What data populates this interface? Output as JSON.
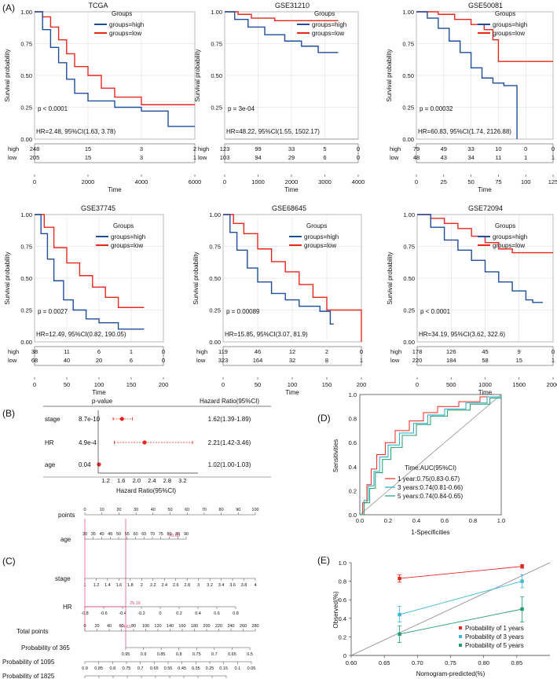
{
  "panel_letters": {
    "A": "(A)",
    "B": "(B)",
    "C": "(C)",
    "D": "(D)",
    "E": "(E)"
  },
  "colors": {
    "high": "#1f4e9c",
    "low": "#e8271f",
    "forest": "#e8271f",
    "nomogram": "#d9437a",
    "grid": "#d9d9d9"
  },
  "km_common": {
    "ylabel": "Survival probability",
    "xlabel": "Time",
    "legend_title": "Groups",
    "legend_high": "groups=high",
    "legend_low": "groups=low",
    "risk_high": "high",
    "risk_low": "low"
  },
  "km_panels": [
    {
      "title": "TCGA",
      "xmax": 6000,
      "ticks": [
        "0",
        "2000",
        "4000",
        "6000"
      ],
      "risk_times": [
        0,
        2000,
        4000,
        6000
      ],
      "risk_high": [
        "248",
        "15",
        "3",
        "2"
      ],
      "risk_low": [
        "205",
        "15",
        "3",
        "1"
      ],
      "pval": "p < 0.0001",
      "hr": "HR=2.48, 95%CI(1.63, 3.78)",
      "yticks": [
        "0.00",
        "0.25",
        "0.50",
        "0.75",
        "1.00"
      ],
      "high_curve": [
        [
          0,
          1
        ],
        [
          300,
          0.86
        ],
        [
          600,
          0.72
        ],
        [
          900,
          0.6
        ],
        [
          1200,
          0.47
        ],
        [
          1500,
          0.36
        ],
        [
          2000,
          0.3
        ],
        [
          3000,
          0.25
        ],
        [
          4000,
          0.22
        ],
        [
          5000,
          0.1
        ],
        [
          6000,
          0.1
        ]
      ],
      "low_curve": [
        [
          0,
          1
        ],
        [
          300,
          0.96
        ],
        [
          600,
          0.88
        ],
        [
          900,
          0.78
        ],
        [
          1200,
          0.67
        ],
        [
          1500,
          0.57
        ],
        [
          2000,
          0.5
        ],
        [
          2500,
          0.4
        ],
        [
          3000,
          0.33
        ],
        [
          4000,
          0.27
        ],
        [
          5000,
          0.27
        ],
        [
          6000,
          0.27
        ]
      ]
    },
    {
      "title": "GSE31210",
      "xmax": 4000,
      "ticks": [
        "0",
        "1000",
        "2000",
        "3000",
        "4000"
      ],
      "risk_times": [
        0,
        1000,
        2000,
        3000,
        4000
      ],
      "risk_high": [
        "123",
        "99",
        "33",
        "5",
        "0"
      ],
      "risk_low": [
        "103",
        "94",
        "29",
        "6",
        "0"
      ],
      "pval": "p = 3e-04",
      "hr": "HR=48.22, 95%CI(1.55, 1502.17)",
      "yticks": [
        "0.25",
        "0.50",
        "0.75",
        "1.00"
      ],
      "high_curve": [
        [
          0,
          1
        ],
        [
          300,
          0.94
        ],
        [
          700,
          0.88
        ],
        [
          1200,
          0.82
        ],
        [
          1800,
          0.77
        ],
        [
          2300,
          0.73
        ],
        [
          2800,
          0.68
        ],
        [
          3400,
          0.68
        ]
      ],
      "low_curve": [
        [
          0,
          1
        ],
        [
          400,
          0.98
        ],
        [
          800,
          0.95
        ],
        [
          1500,
          0.93
        ],
        [
          3400,
          0.93
        ]
      ]
    },
    {
      "title": "GSE50081",
      "xmax": 125,
      "ticks": [
        "0",
        "25",
        "50",
        "75",
        "100",
        "125"
      ],
      "risk_times": [
        0,
        25,
        50,
        75,
        100,
        125
      ],
      "risk_high": [
        "79",
        "49",
        "33",
        "10",
        "0",
        "0"
      ],
      "risk_low": [
        "48",
        "43",
        "34",
        "11",
        "1",
        "1"
      ],
      "pval": "p = 0.00032",
      "hr": "HR=60.83, 95%CI(1.74, 2126.88)",
      "yticks": [
        "0.00",
        "0.25",
        "0.50",
        "0.75",
        "1.00"
      ],
      "high_curve": [
        [
          0,
          1
        ],
        [
          10,
          0.95
        ],
        [
          20,
          0.87
        ],
        [
          30,
          0.77
        ],
        [
          40,
          0.68
        ],
        [
          50,
          0.56
        ],
        [
          60,
          0.48
        ],
        [
          70,
          0.44
        ],
        [
          80,
          0.42
        ],
        [
          90,
          0.42
        ],
        [
          92,
          0
        ]
      ],
      "low_curve": [
        [
          0,
          1
        ],
        [
          20,
          0.98
        ],
        [
          35,
          0.94
        ],
        [
          50,
          0.9
        ],
        [
          62,
          0.86
        ],
        [
          70,
          0.78
        ],
        [
          75,
          0.61
        ],
        [
          125,
          0.61
        ]
      ]
    },
    {
      "title": "GSE37745",
      "xmax": 200,
      "ticks": [
        "0",
        "50",
        "100",
        "150",
        "200"
      ],
      "risk_times": [
        0,
        50,
        100,
        150,
        200
      ],
      "risk_high": [
        "38",
        "11",
        "6",
        "1",
        "0"
      ],
      "risk_low": [
        "68",
        "40",
        "20",
        "6",
        "0"
      ],
      "pval": "p = 0.0027",
      "hr": "HR=12.49, 95%CI(0.82, 190.05)",
      "yticks": [
        "0.00",
        "0.25",
        "0.50",
        "0.75",
        "1.00"
      ],
      "high_curve": [
        [
          0,
          1
        ],
        [
          10,
          0.85
        ],
        [
          20,
          0.65
        ],
        [
          30,
          0.48
        ],
        [
          45,
          0.33
        ],
        [
          60,
          0.25
        ],
        [
          80,
          0.18
        ],
        [
          100,
          0.15
        ],
        [
          130,
          0.1
        ],
        [
          170,
          0.1
        ]
      ],
      "low_curve": [
        [
          0,
          1
        ],
        [
          15,
          0.9
        ],
        [
          30,
          0.74
        ],
        [
          50,
          0.62
        ],
        [
          70,
          0.52
        ],
        [
          90,
          0.43
        ],
        [
          110,
          0.35
        ],
        [
          130,
          0.27
        ],
        [
          170,
          0.27
        ]
      ]
    },
    {
      "title": "GSE68645",
      "xmax": 200,
      "ticks": [
        "0",
        "50",
        "100",
        "150",
        "200"
      ],
      "risk_times": [
        0,
        50,
        100,
        150,
        200
      ],
      "risk_high": [
        "119",
        "46",
        "12",
        "2",
        "0"
      ],
      "risk_low": [
        "323",
        "164",
        "32",
        "8",
        "1"
      ],
      "pval": "p = 0.00089",
      "hr": "HR=15.85, 95%CI(3.07, 81.9)",
      "yticks": [
        "0.00",
        "0.25",
        "0.50",
        "0.75",
        "1.00"
      ],
      "high_curve": [
        [
          0,
          1
        ],
        [
          10,
          0.86
        ],
        [
          20,
          0.72
        ],
        [
          35,
          0.58
        ],
        [
          50,
          0.47
        ],
        [
          70,
          0.38
        ],
        [
          90,
          0.33
        ],
        [
          110,
          0.28
        ],
        [
          140,
          0.24
        ],
        [
          155,
          0.14
        ],
        [
          160,
          0.14
        ]
      ],
      "low_curve": [
        [
          0,
          1
        ],
        [
          15,
          0.93
        ],
        [
          30,
          0.85
        ],
        [
          50,
          0.73
        ],
        [
          70,
          0.63
        ],
        [
          90,
          0.55
        ],
        [
          110,
          0.45
        ],
        [
          130,
          0.35
        ],
        [
          150,
          0.25
        ],
        [
          200,
          0.25
        ],
        [
          200,
          0
        ]
      ]
    },
    {
      "title": "GSE72094",
      "xmax": 2000,
      "ticks": [
        "0",
        "500",
        "1000",
        "1500",
        "2000"
      ],
      "risk_times": [
        0,
        500,
        1000,
        1500,
        2000
      ],
      "risk_high": [
        "178",
        "126",
        "45",
        "9",
        "0"
      ],
      "risk_low": [
        "220",
        "184",
        "58",
        "15",
        "1"
      ],
      "pval": "p < 0.0001",
      "hr": "HR=34.19, 95%CI(3.62, 322.6)",
      "yticks": [
        "0.00",
        "0.25",
        "0.50",
        "0.75",
        "1.00"
      ],
      "high_curve": [
        [
          0,
          1
        ],
        [
          200,
          0.9
        ],
        [
          400,
          0.8
        ],
        [
          600,
          0.72
        ],
        [
          800,
          0.64
        ],
        [
          1000,
          0.55
        ],
        [
          1200,
          0.47
        ],
        [
          1400,
          0.4
        ],
        [
          1600,
          0.33
        ],
        [
          1700,
          0.31
        ],
        [
          1850,
          0.31
        ]
      ],
      "low_curve": [
        [
          0,
          1
        ],
        [
          200,
          0.97
        ],
        [
          400,
          0.93
        ],
        [
          600,
          0.89
        ],
        [
          800,
          0.83
        ],
        [
          1000,
          0.78
        ],
        [
          1200,
          0.73
        ],
        [
          1400,
          0.7
        ],
        [
          2000,
          0.7
        ]
      ]
    }
  ],
  "forest": {
    "header_p": "p-value",
    "header_hr": "Hazard Ratio(95%CI)",
    "xlabel": "Hazard Ratio(95%CI)",
    "xticks": [
      "1.2",
      "1.6",
      "2.0",
      "2.4",
      "2.8",
      "3.2"
    ],
    "xtick_values": [
      1.2,
      1.6,
      2.0,
      2.4,
      2.8,
      3.2
    ],
    "rows": [
      {
        "name": "stage",
        "p": "8.7e-10",
        "ci_text": "1.62(1.39-1.89)",
        "hr": 1.62,
        "lo": 1.39,
        "hi": 1.89
      },
      {
        "name": "HR",
        "p": "4.9e-4",
        "ci_text": "2.21(1.42-3.46)",
        "hr": 2.21,
        "lo": 1.42,
        "hi": 3.46
      },
      {
        "name": "age",
        "p": "0.04",
        "ci_text": "1.02(1.00-1.03)",
        "hr": 1.02,
        "lo": 1.0,
        "hi": 1.03
      }
    ]
  },
  "nomogram": {
    "rows": [
      {
        "label": "points",
        "ticks": [
          "0",
          "10",
          "20",
          "30",
          "40",
          "50",
          "60",
          "70",
          "80",
          "90",
          "100"
        ]
      },
      {
        "label": "age",
        "ticks": [
          "30",
          "35",
          "40",
          "45",
          "50",
          "55",
          "60",
          "65",
          "70",
          "75",
          "80",
          "85",
          "90"
        ],
        "marker": "49.68"
      },
      {
        "label": "stage",
        "ticks": [
          "1",
          "1.2",
          "1.4",
          "1.6",
          "1.8",
          "2",
          "2.2",
          "2.4",
          "2.6",
          "2.8",
          "3",
          "3.2",
          "3.4",
          "3.6",
          "3.8",
          "4"
        ]
      },
      {
        "label": "HR",
        "ticks": [
          "-0.8",
          "-0.6",
          "-0.4",
          "-0.2",
          "0",
          "0.2",
          "0.4",
          "0.6",
          "0.8"
        ],
        "marker": "25.16"
      },
      {
        "label": "Total points",
        "ticks": [
          "0",
          "20",
          "40",
          "60",
          "80",
          "100",
          "120",
          "140",
          "160",
          "180",
          "200",
          "220",
          "240",
          "260",
          "280"
        ],
        "marker": "74.61"
      },
      {
        "label": "Probability of 365",
        "ticks": [
          "0.95",
          "0.9",
          "0.85",
          "0.8",
          "0.75",
          "0.7",
          "0.65",
          "0.5"
        ]
      },
      {
        "label": "Probability of 1095",
        "ticks": [
          "0.9",
          "0.85",
          "0.8",
          "0.75",
          "0.7",
          "0.65",
          "0.55",
          "0.45",
          "0.35",
          "0.25",
          "0.15",
          "0.1",
          "0.05"
        ]
      },
      {
        "label": "Probability of 1825",
        "ticks": [
          "0.8",
          "0.75",
          "0.7",
          "0.65",
          "0.55",
          "0.45",
          "0.35",
          "0.25",
          "0.15",
          "0.1",
          "0.05"
        ]
      }
    ]
  },
  "roc": {
    "ylabel": "Sensitivities",
    "xlabel": "1-Specificities",
    "legend_title": "Time:AUC(95%CI)",
    "xticks": [
      "0.0",
      "0.2",
      "0.4",
      "0.6",
      "0.8",
      "1.0"
    ],
    "yticks": [
      "0.0",
      "0.2",
      "0.4",
      "0.6",
      "0.8",
      "1.0"
    ],
    "series": [
      {
        "label": "1 year:0.75(0.83-0.67)",
        "color": "#e8271f",
        "points": [
          [
            0,
            0
          ],
          [
            0.02,
            0.1
          ],
          [
            0.05,
            0.25
          ],
          [
            0.08,
            0.38
          ],
          [
            0.12,
            0.5
          ],
          [
            0.18,
            0.6
          ],
          [
            0.25,
            0.7
          ],
          [
            0.35,
            0.78
          ],
          [
            0.45,
            0.85
          ],
          [
            0.55,
            0.9
          ],
          [
            0.7,
            0.94
          ],
          [
            0.85,
            0.98
          ],
          [
            1,
            1
          ]
        ]
      },
      {
        "label": "3 years:0.74(0.81-0.66)",
        "color": "#22a9c9",
        "points": [
          [
            0,
            0
          ],
          [
            0.03,
            0.12
          ],
          [
            0.06,
            0.24
          ],
          [
            0.1,
            0.36
          ],
          [
            0.14,
            0.48
          ],
          [
            0.2,
            0.58
          ],
          [
            0.28,
            0.68
          ],
          [
            0.38,
            0.76
          ],
          [
            0.48,
            0.83
          ],
          [
            0.6,
            0.88
          ],
          [
            0.75,
            0.93
          ],
          [
            0.9,
            0.98
          ],
          [
            1,
            1
          ]
        ]
      },
      {
        "label": "5 years:0.74(0.84-0.65)",
        "color": "#1f9e6a",
        "points": [
          [
            0,
            0
          ],
          [
            0.03,
            0.1
          ],
          [
            0.07,
            0.22
          ],
          [
            0.11,
            0.35
          ],
          [
            0.16,
            0.46
          ],
          [
            0.22,
            0.56
          ],
          [
            0.3,
            0.66
          ],
          [
            0.4,
            0.75
          ],
          [
            0.5,
            0.82
          ],
          [
            0.62,
            0.87
          ],
          [
            0.78,
            0.92
          ],
          [
            0.92,
            0.97
          ],
          [
            1,
            1
          ]
        ]
      }
    ]
  },
  "calibration": {
    "ylabel": "Observed(%)",
    "xlabel": "Nomogram-predicted(%)",
    "xticks": [
      "0.60",
      "0.65",
      "0.70",
      "0.75",
      "0.80",
      "0.85"
    ],
    "yticks": [
      "0",
      "0.2",
      "0.4",
      "0.6",
      "0.8",
      "1.0"
    ],
    "series": [
      {
        "label": "Probability of 1 years",
        "color": "#e8271f",
        "points": [
          [
            0.673,
            0.83
          ],
          [
            0.858,
            0.96
          ]
        ],
        "err": [
          [
            0.79,
            0.87
          ],
          [
            0.94,
            0.98
          ]
        ]
      },
      {
        "label": "Probability of 3 years",
        "color": "#3fb8d8",
        "points": [
          [
            0.673,
            0.44
          ],
          [
            0.858,
            0.8
          ]
        ],
        "err": [
          [
            0.36,
            0.53
          ],
          [
            0.73,
            0.87
          ]
        ]
      },
      {
        "label": "Probability of 5 years",
        "color": "#1f9e6a",
        "points": [
          [
            0.673,
            0.23
          ],
          [
            0.858,
            0.5
          ]
        ],
        "err": [
          [
            0.14,
            0.32
          ],
          [
            0.36,
            0.63
          ]
        ]
      }
    ]
  }
}
